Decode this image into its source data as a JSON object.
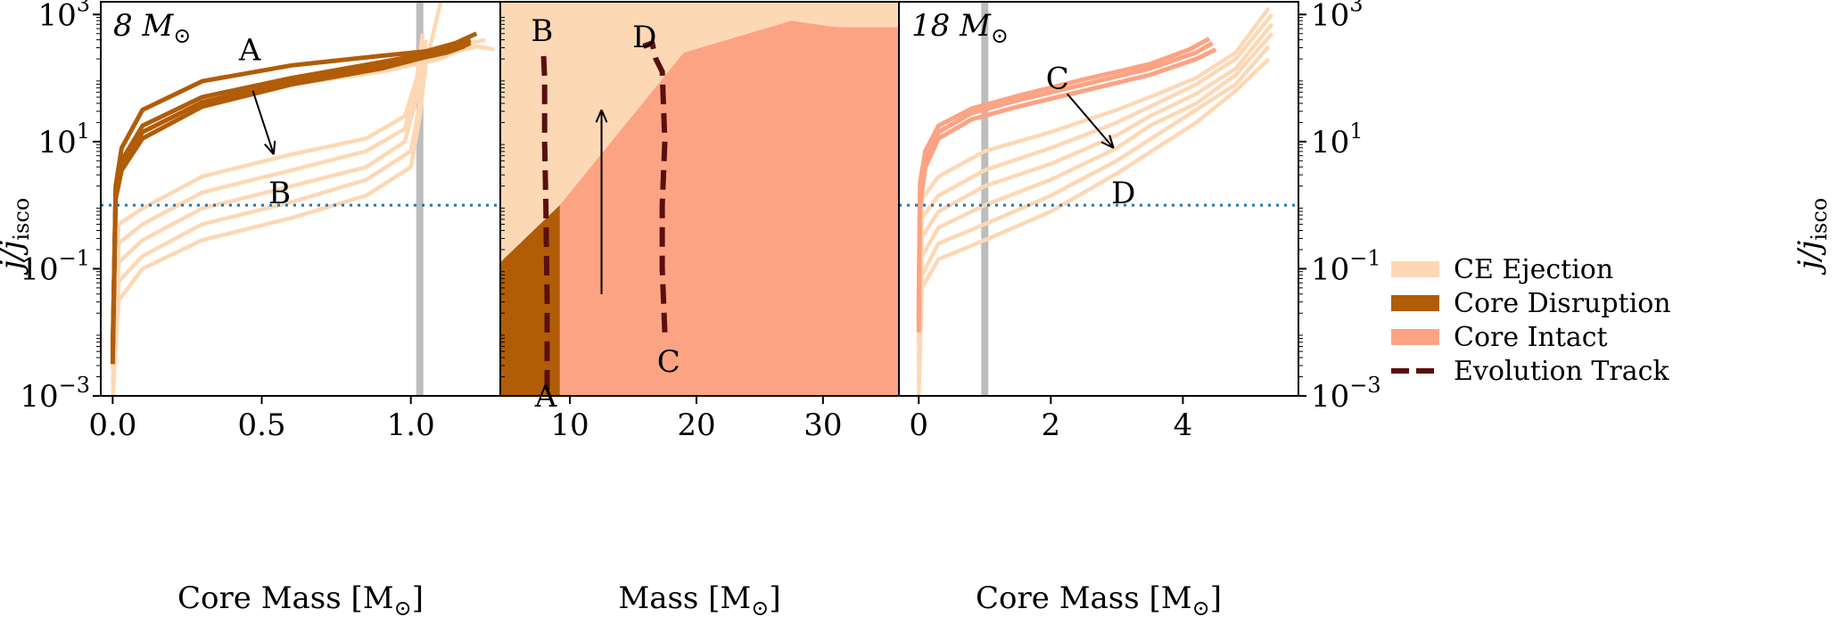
{
  "colors": {
    "ce_ejection": "#fdd8b5",
    "core_disruption": "#b15c07",
    "core_intact": "#fca383",
    "evolution_track": "#5a0f0f",
    "isco_line": "#1f77b4",
    "vline": "#bdbdbd"
  },
  "chart_data": [
    {
      "type": "line",
      "panel_label": "8 M_sun",
      "panel_label_text": "8 M",
      "xlabel": "Core Mass [M_sun]",
      "xlabel_text": "Core Mass [M",
      "xlabel_close": "]",
      "ylabel": "j/j_isco",
      "xlim": [
        -0.04,
        1.3
      ],
      "ylim_log10": [
        -3,
        3.2
      ],
      "xticks": [
        0.0,
        0.5,
        1.0
      ],
      "xtick_labels": [
        "0.0",
        "0.5",
        "1.0"
      ],
      "yticks_log10": [
        -3,
        -1,
        1,
        3
      ],
      "ytick_labels": [
        "10",
        "10",
        "10",
        "10"
      ],
      "ytick_exponents": [
        "−3",
        "−1",
        "1",
        "3"
      ],
      "vline_x": 1.03,
      "hline_y": 1,
      "annotations": [
        {
          "text": "A",
          "x": 0.46,
          "y_log10": 2.45
        },
        {
          "text": "B",
          "x": 0.56,
          "y_log10": 0.2
        }
      ],
      "arrow": {
        "from": [
          0.47,
          1.8
        ],
        "to": [
          0.54,
          0.8
        ]
      },
      "series": [
        {
          "name": "Core Intact/CE curve 1",
          "class": "ce",
          "x": [
            0,
            0.02,
            0.1,
            0.3,
            0.6,
            0.85,
            1.0,
            1.03,
            1.05,
            1.1
          ],
          "y_log10": [
            -3,
            -1.5,
            -1.0,
            -0.55,
            -0.2,
            0.15,
            0.6,
            1.4,
            2.2,
            3.2
          ]
        },
        {
          "name": "CE curve 2",
          "class": "ce",
          "x": [
            0,
            0.02,
            0.1,
            0.3,
            0.6,
            0.85,
            1.0,
            1.03,
            1.05
          ],
          "y_log10": [
            -2.8,
            -1.2,
            -0.8,
            -0.3,
            0.05,
            0.4,
            0.85,
            1.6,
            2.6
          ]
        },
        {
          "name": "CE curve 3",
          "class": "ce",
          "x": [
            0,
            0.02,
            0.1,
            0.3,
            0.6,
            0.85,
            0.98,
            1.02,
            1.04
          ],
          "y_log10": [
            -2.6,
            -0.9,
            -0.55,
            -0.05,
            0.3,
            0.6,
            1.0,
            1.7,
            2.5
          ]
        },
        {
          "name": "CE curve 4",
          "class": "ce",
          "x": [
            0,
            0.02,
            0.1,
            0.3,
            0.6,
            0.85,
            0.98,
            1.02,
            1.04
          ],
          "y_log10": [
            -2.4,
            -0.6,
            -0.3,
            0.2,
            0.55,
            0.85,
            1.2,
            1.9,
            2.6
          ]
        },
        {
          "name": "CE curve 5",
          "class": "ce",
          "x": [
            0,
            0.02,
            0.1,
            0.3,
            0.6,
            0.85,
            0.98,
            1.02,
            1.04
          ],
          "y_log10": [
            -2.2,
            -0.3,
            -0.05,
            0.45,
            0.8,
            1.05,
            1.4,
            2.0,
            2.7
          ]
        },
        {
          "name": "CE upper 1",
          "class": "ce",
          "x": [
            0.3,
            0.6,
            0.9,
            1.1,
            1.22,
            1.28
          ],
          "y_log10": [
            1.7,
            1.95,
            2.15,
            2.35,
            2.5,
            2.45
          ]
        },
        {
          "name": "CE upper 2",
          "class": "ce",
          "x": [
            0.3,
            0.6,
            0.9,
            1.1,
            1.2,
            1.25
          ],
          "y_log10": [
            1.65,
            1.9,
            2.1,
            2.3,
            2.55,
            2.6
          ]
        },
        {
          "name": "Disruption 1",
          "class": "cd",
          "x": [
            0.0,
            0.01,
            0.03,
            0.1,
            0.3,
            0.6,
            0.9,
            1.05,
            1.15,
            1.22
          ],
          "y_log10": [
            -2.5,
            0.3,
            0.9,
            1.5,
            1.95,
            2.2,
            2.35,
            2.42,
            2.55,
            2.7
          ]
        },
        {
          "name": "Disruption 2",
          "class": "cd",
          "x": [
            0.0,
            0.01,
            0.03,
            0.1,
            0.3,
            0.6,
            0.9,
            1.05,
            1.15,
            1.2
          ],
          "y_log10": [
            -2.4,
            0.2,
            0.7,
            1.25,
            1.7,
            2.0,
            2.25,
            2.38,
            2.5,
            2.6
          ]
        },
        {
          "name": "Disruption 3",
          "class": "cd",
          "x": [
            0.0,
            0.01,
            0.03,
            0.1,
            0.3,
            0.6,
            0.9,
            1.05,
            1.15,
            1.2
          ],
          "y_log10": [
            -2.3,
            0.15,
            0.6,
            1.15,
            1.62,
            1.95,
            2.2,
            2.36,
            2.45,
            2.55
          ]
        },
        {
          "name": "Disruption 4",
          "class": "cd",
          "x": [
            0.0,
            0.01,
            0.03,
            0.1,
            0.3,
            0.6,
            0.9,
            1.05,
            1.12,
            1.18
          ],
          "y_log10": [
            -2.2,
            0.1,
            0.55,
            1.05,
            1.55,
            1.9,
            2.15,
            2.33,
            2.4,
            2.5
          ]
        }
      ]
    },
    {
      "type": "area",
      "xlabel": "Mass [M_sun]",
      "xlabel_text": "Mass [M",
      "xlabel_close": "]",
      "xlim": [
        4.5,
        36
      ],
      "ylim_log10": [
        -3,
        3.2
      ],
      "xticks": [
        10,
        20,
        30
      ],
      "xtick_labels": [
        "10",
        "20",
        "30"
      ],
      "regions": [
        {
          "name": "CE Ejection",
          "class": "ce"
        },
        {
          "name": "Core Intact",
          "class": "ci",
          "boundary_x": [
            4.5,
            9.2,
            19,
            27.5,
            31,
            36
          ],
          "boundary_y_log10": [
            -3,
            0.0,
            2.4,
            2.9,
            2.8,
            2.8
          ]
        },
        {
          "name": "Core Disruption",
          "class": "cd",
          "boundary_x": [
            4.5,
            9.2
          ],
          "boundary_y_log10": [
            -0.9,
            0.0
          ]
        }
      ],
      "tracks": [
        {
          "name": "Evolution Track A-B",
          "x": [
            8.2,
            8.2,
            8.1,
            8.0,
            8.0,
            7.9
          ],
          "y_log10": [
            -2.9,
            -1.5,
            0.0,
            1.0,
            2.0,
            2.45
          ]
        },
        {
          "name": "Evolution Track C-D",
          "x": [
            17.5,
            17.3,
            17.3,
            17.5,
            17.3,
            16.8,
            16.5,
            15.8
          ],
          "y_log10": [
            -2.0,
            -1.0,
            0.0,
            1.0,
            2.1,
            2.3,
            2.55,
            2.5
          ]
        }
      ],
      "annotations": [
        {
          "text": "B",
          "x": 7.8,
          "y_log10": 2.75
        },
        {
          "text": "D",
          "x": 15.9,
          "y_log10": 2.65
        },
        {
          "text": "C",
          "x": 17.8,
          "y_log10": -2.45
        },
        {
          "text": "A",
          "x": 8.1,
          "y_log10": -3.0
        }
      ],
      "arrow": {
        "from": [
          12.5,
          -1.4
        ],
        "to": [
          12.5,
          1.5
        ]
      }
    },
    {
      "type": "line",
      "panel_label": "18 M_sun",
      "panel_label_text": "18 M",
      "xlabel": "Core Mass [M_sun]",
      "xlabel_text": "Core Mass [M",
      "xlabel_close": "]",
      "ylabel": "j/j_isco",
      "xlim": [
        -0.3,
        5.75
      ],
      "ylim_log10": [
        -3,
        3.2
      ],
      "xticks": [
        0,
        2,
        4
      ],
      "xtick_labels": [
        "0",
        "2",
        "4"
      ],
      "yticks_log10": [
        -3,
        -1,
        1,
        3
      ],
      "ytick_labels": [
        "10",
        "10",
        "10",
        "10"
      ],
      "ytick_exponents": [
        "−3",
        "−1",
        "1",
        "3"
      ],
      "vline_x": 1.0,
      "hline_y": 1,
      "annotations": [
        {
          "text": "C",
          "x": 2.1,
          "y_log10": 2.0
        },
        {
          "text": "D",
          "x": 3.1,
          "y_log10": 0.2
        }
      ],
      "arrow": {
        "from": [
          2.25,
          1.75
        ],
        "to": [
          2.95,
          0.9
        ]
      },
      "series": [
        {
          "name": "CE 1",
          "class": "ce",
          "x": [
            0,
            0.05,
            0.3,
            1.0,
            2.0,
            3.0,
            3.6,
            4.2,
            4.8,
            5.3
          ],
          "y_log10": [
            -3,
            -1.3,
            -0.85,
            -0.55,
            -0.1,
            0.5,
            0.9,
            1.3,
            1.8,
            2.3
          ]
        },
        {
          "name": "CE 2",
          "class": "ce",
          "x": [
            0,
            0.05,
            0.3,
            1.0,
            2.0,
            3.0,
            3.6,
            4.2,
            4.8,
            5.3
          ],
          "y_log10": [
            -2.8,
            -1.1,
            -0.6,
            -0.3,
            0.15,
            0.7,
            1.1,
            1.5,
            1.9,
            2.5
          ]
        },
        {
          "name": "CE 3",
          "class": "ce",
          "x": [
            0,
            0.05,
            0.3,
            1.0,
            2.0,
            3.0,
            3.5,
            4.2,
            4.8,
            5.35
          ],
          "y_log10": [
            -2.6,
            -0.8,
            -0.35,
            0.0,
            0.4,
            0.9,
            1.25,
            1.6,
            2.05,
            2.7
          ]
        },
        {
          "name": "CE 4",
          "class": "ce",
          "x": [
            0,
            0.05,
            0.3,
            1.0,
            2.0,
            3.0,
            3.5,
            4.2,
            4.8,
            5.35
          ],
          "y_log10": [
            -2.4,
            -0.5,
            -0.1,
            0.3,
            0.65,
            1.1,
            1.4,
            1.75,
            2.15,
            2.85
          ]
        },
        {
          "name": "CE 5",
          "class": "ce",
          "x": [
            0,
            0.05,
            0.3,
            1.0,
            2.0,
            3.0,
            3.5,
            4.2,
            4.8,
            5.35
          ],
          "y_log10": [
            -2.2,
            -0.2,
            0.15,
            0.55,
            0.9,
            1.3,
            1.55,
            1.9,
            2.3,
            3.0
          ]
        },
        {
          "name": "CE 6",
          "class": "ce",
          "x": [
            0,
            0.05,
            0.3,
            1.0,
            2.0,
            3.0,
            3.5,
            4.2,
            4.8,
            5.3
          ],
          "y_log10": [
            -2.0,
            0.1,
            0.45,
            0.85,
            1.15,
            1.5,
            1.7,
            2.0,
            2.4,
            3.1
          ]
        },
        {
          "name": "Intact 1",
          "class": "ci",
          "x": [
            0.0,
            0.02,
            0.1,
            0.3,
            0.8,
            1.5,
            2.5,
            3.5,
            4.2,
            4.5
          ],
          "y_log10": [
            -2.0,
            0.0,
            0.6,
            1.05,
            1.35,
            1.55,
            1.8,
            2.05,
            2.3,
            2.45
          ]
        },
        {
          "name": "Intact 2",
          "class": "ci",
          "x": [
            0.0,
            0.02,
            0.1,
            0.3,
            0.8,
            1.5,
            2.5,
            3.5,
            4.2,
            4.45
          ],
          "y_log10": [
            -1.8,
            0.2,
            0.75,
            1.15,
            1.45,
            1.65,
            1.9,
            2.15,
            2.4,
            2.55
          ]
        },
        {
          "name": "Intact 3",
          "class": "ci",
          "x": [
            0.0,
            0.02,
            0.1,
            0.3,
            0.8,
            1.5,
            2.5,
            3.5,
            4.1,
            4.4
          ],
          "y_log10": [
            -1.6,
            0.35,
            0.85,
            1.25,
            1.52,
            1.72,
            1.98,
            2.22,
            2.45,
            2.62
          ]
        }
      ]
    }
  ],
  "legend": {
    "position": "lower-right",
    "items": [
      {
        "label": "CE Ejection",
        "class": "ce"
      },
      {
        "label": "Core Disruption",
        "class": "cd"
      },
      {
        "label": "Core Intact",
        "class": "ci"
      },
      {
        "label": "Evolution Track",
        "class": "track"
      }
    ]
  },
  "ylabel_left": "j/j",
  "ylabel_sub": "isco",
  "msun_sub": "⊙",
  "ten": "10"
}
